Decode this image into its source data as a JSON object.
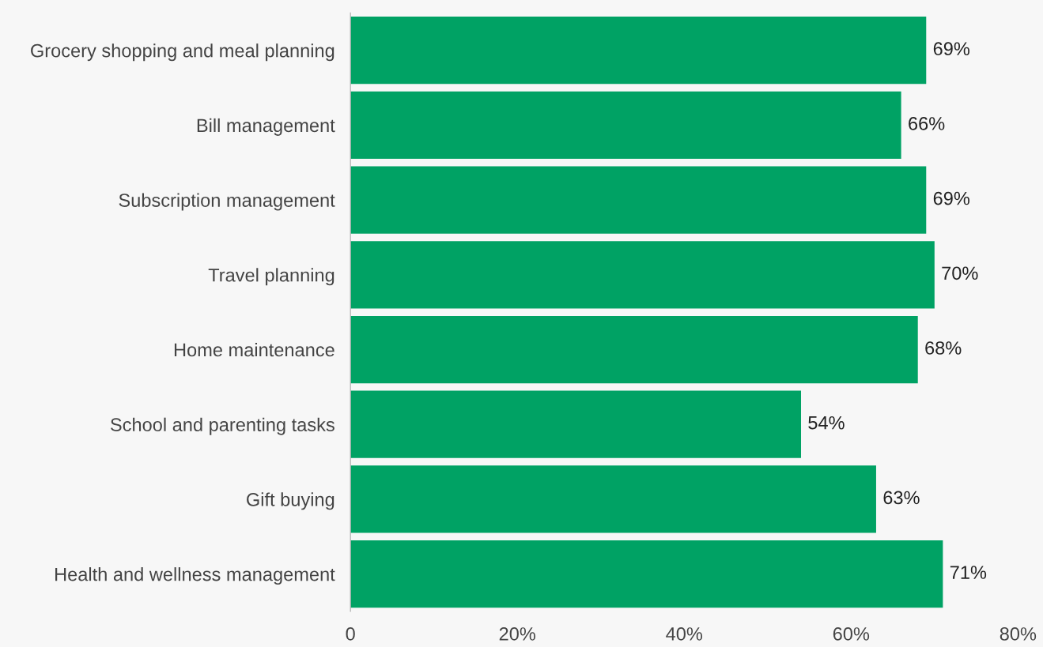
{
  "chart_data": {
    "type": "bar",
    "orientation": "horizontal",
    "categories": [
      "Grocery shopping and meal planning",
      "Bill management",
      "Subscription management",
      "Travel planning",
      "Home maintenance",
      "School and parenting tasks",
      "Gift buying",
      "Health and wellness management"
    ],
    "values": [
      69,
      66,
      69,
      70,
      68,
      54,
      63,
      71
    ],
    "color": "#00a264",
    "value_labels": [
      "69%",
      "66%",
      "69%",
      "70%",
      "68%",
      "54%",
      "63%",
      "71%"
    ],
    "xlim": [
      0,
      80
    ],
    "xticks": [
      0,
      {
        "value": 20,
        "label": "20%"
      },
      {
        "value": 40,
        "label": "40%"
      },
      {
        "value": 60,
        "label": "60%"
      },
      {
        "value": 80,
        "label": "80%"
      }
    ],
    "grid": false,
    "legend": false
  }
}
